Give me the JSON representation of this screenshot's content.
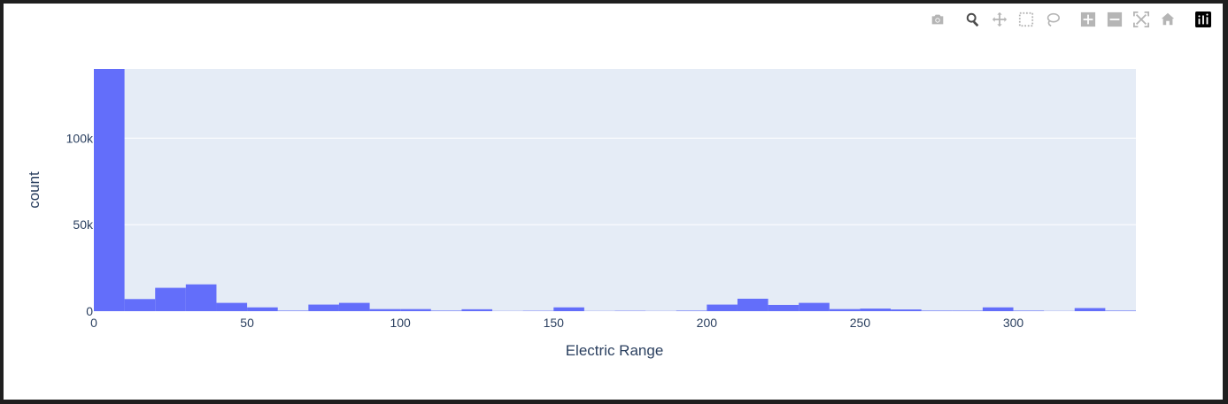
{
  "modebar": {
    "buttons": [
      {
        "name": "camera-icon",
        "label": "Download plot as a png"
      },
      {
        "name": "zoom-icon",
        "label": "Zoom",
        "active": true
      },
      {
        "name": "pan-icon",
        "label": "Pan"
      },
      {
        "name": "box-select-icon",
        "label": "Box Select"
      },
      {
        "name": "lasso-select-icon",
        "label": "Lasso Select"
      },
      {
        "name": "zoom-in-icon",
        "label": "Zoom in"
      },
      {
        "name": "zoom-out-icon",
        "label": "Zoom out"
      },
      {
        "name": "autoscale-icon",
        "label": "Autoscale"
      },
      {
        "name": "reset-axes-icon",
        "label": "Reset axes"
      },
      {
        "name": "plotly-logo-icon",
        "label": "Produced with Plotly"
      }
    ]
  },
  "chart_data": {
    "type": "bar",
    "xlabel": "Electric Range",
    "ylabel": "count",
    "xlim": [
      0,
      340
    ],
    "ylim": [
      0,
      140000
    ],
    "bin_width": 10,
    "x_ticks": [
      0,
      50,
      100,
      150,
      200,
      250,
      300
    ],
    "x_tick_labels": [
      "0",
      "50",
      "100",
      "150",
      "200",
      "250",
      "300"
    ],
    "y_ticks": [
      0,
      50000,
      100000
    ],
    "y_tick_labels": [
      "0",
      "50k",
      "100k"
    ],
    "grid": true,
    "bar_color": "#636efa",
    "plot_bg": "#e5ecf6",
    "bins": [
      {
        "start": 0,
        "count": 140000
      },
      {
        "start": 10,
        "count": 7000
      },
      {
        "start": 20,
        "count": 13500
      },
      {
        "start": 30,
        "count": 15500
      },
      {
        "start": 40,
        "count": 4800
      },
      {
        "start": 50,
        "count": 2200
      },
      {
        "start": 60,
        "count": 300
      },
      {
        "start": 70,
        "count": 3800
      },
      {
        "start": 80,
        "count": 4800
      },
      {
        "start": 90,
        "count": 1200
      },
      {
        "start": 100,
        "count": 1200
      },
      {
        "start": 110,
        "count": 300
      },
      {
        "start": 120,
        "count": 1100
      },
      {
        "start": 130,
        "count": 100
      },
      {
        "start": 140,
        "count": 200
      },
      {
        "start": 150,
        "count": 2200
      },
      {
        "start": 160,
        "count": 100
      },
      {
        "start": 170,
        "count": 200
      },
      {
        "start": 180,
        "count": 100
      },
      {
        "start": 190,
        "count": 300
      },
      {
        "start": 200,
        "count": 3800
      },
      {
        "start": 210,
        "count": 7200
      },
      {
        "start": 220,
        "count": 3600
      },
      {
        "start": 230,
        "count": 4800
      },
      {
        "start": 240,
        "count": 1200
      },
      {
        "start": 250,
        "count": 1500
      },
      {
        "start": 260,
        "count": 1000
      },
      {
        "start": 270,
        "count": 300
      },
      {
        "start": 280,
        "count": 300
      },
      {
        "start": 290,
        "count": 2200
      },
      {
        "start": 300,
        "count": 300
      },
      {
        "start": 310,
        "count": 100
      },
      {
        "start": 320,
        "count": 1800
      },
      {
        "start": 330,
        "count": 300
      }
    ]
  }
}
